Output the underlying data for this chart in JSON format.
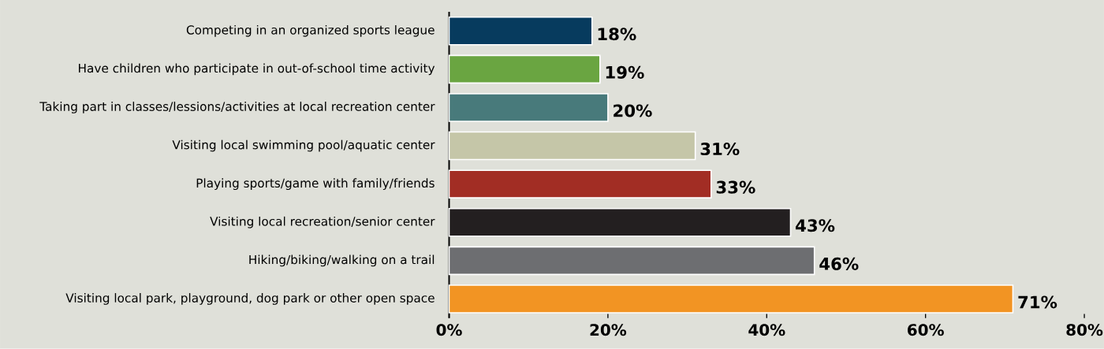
{
  "chart_data": {
    "type": "bar",
    "orientation": "horizontal",
    "categories": [
      "Competing in an organized sports league",
      "Have children who participate in out-of-school time activity",
      "Taking part in classes/lessions/activities at local recreation center",
      "Visiting local swimming pool/aquatic center",
      "Playing sports/game with family/friends",
      "Visiting local recreation/senior center",
      "Hiking/biking/walking on a trail",
      "Visiting local park, playground, dog park or other open space"
    ],
    "values": [
      18,
      19,
      20,
      31,
      33,
      43,
      46,
      71
    ],
    "colors": [
      "#073b5e",
      "#6aa541",
      "#487a7b",
      "#c5c6a8",
      "#a22d24",
      "#231f20",
      "#6d6e71",
      "#f29423"
    ],
    "value_labels": [
      "18%",
      "19%",
      "20%",
      "31%",
      "33%",
      "43%",
      "46%",
      "71%"
    ],
    "xlim": [
      0,
      80
    ],
    "xticks": [
      {
        "value": 0,
        "label": "0%"
      },
      {
        "value": 20,
        "label": "20%"
      },
      {
        "value": 40,
        "label": "40%"
      },
      {
        "value": 60,
        "label": "60%"
      },
      {
        "value": 80,
        "label": "80%"
      }
    ],
    "grid": false
  }
}
